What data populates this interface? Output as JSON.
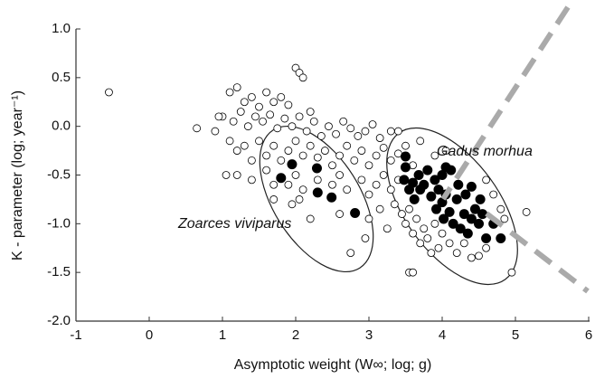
{
  "chart_data": {
    "type": "scatter",
    "x_label": "Asymptotic weight (W∞; log; g)",
    "y_label": "K - parameter (log; year⁻¹)",
    "annotations": [
      "Gadus morhua",
      "Zoarces viviparus"
    ],
    "xlim": [
      -1,
      6
    ],
    "xticks": [
      -1,
      0,
      1,
      2,
      3,
      4,
      5,
      6
    ],
    "ylim": [
      -2,
      1
    ],
    "yticks": [
      {
        "value": 1,
        "label": "1.0"
      },
      0.5,
      {
        "value": 0,
        "label": "0.0"
      },
      -0.5,
      {
        "value": -1,
        "label": "-1.0"
      },
      -1.5,
      {
        "value": -2,
        "label": "-2.0"
      }
    ],
    "series": [
      {
        "color": "#000000",
        "marker": "open",
        "x": [
          -0.55,
          0.65,
          2.0,
          2.05,
          2.1,
          5.15,
          2.75,
          3.55,
          3.6,
          4.95,
          4.5,
          1.1,
          1.2,
          1.3,
          1.4,
          1.5,
          1.6,
          1.7,
          1.8,
          1.9,
          2.2,
          1.0,
          1.15,
          1.25,
          1.35,
          1.45,
          1.55,
          1.65,
          1.75,
          1.85,
          1.95,
          2.05,
          2.15,
          2.25,
          2.35,
          2.45,
          2.55,
          2.65,
          2.75,
          2.85,
          2.95,
          3.05,
          3.15,
          3.3,
          0.9,
          1.1,
          1.2,
          1.3,
          1.4,
          1.5,
          1.6,
          1.7,
          1.8,
          1.9,
          2.0,
          2.1,
          2.2,
          2.3,
          2.4,
          2.5,
          2.6,
          2.7,
          2.8,
          2.9,
          3.0,
          3.1,
          3.2,
          3.3,
          3.4,
          3.5,
          1.2,
          1.4,
          1.6,
          1.7,
          1.9,
          2.0,
          2.1,
          2.3,
          2.5,
          2.6,
          2.7,
          2.9,
          3.0,
          3.1,
          3.2,
          3.3,
          3.35,
          3.4,
          3.45,
          3.5,
          3.55,
          3.6,
          3.65,
          3.7,
          3.75,
          3.8,
          3.85,
          3.9,
          3.95,
          4.0,
          4.1,
          4.2,
          4.3,
          4.4,
          4.6,
          4.7,
          4.8,
          4.85,
          4.6,
          3.9,
          4.05,
          1.95,
          2.05,
          1.7,
          2.2,
          2.6,
          3.0,
          3.15,
          3.25,
          2.95,
          1.05,
          0.95,
          3.4,
          3.6,
          3.7
        ],
        "values": [
          0.35,
          -0.02,
          0.6,
          0.55,
          0.5,
          -0.88,
          -1.3,
          -1.5,
          -1.5,
          -1.5,
          -1.33,
          0.35,
          0.4,
          0.25,
          0.3,
          0.2,
          0.35,
          0.25,
          0.3,
          0.22,
          0.15,
          0.1,
          0.05,
          0.15,
          0.0,
          0.1,
          0.05,
          0.12,
          -0.02,
          0.08,
          0.0,
          0.1,
          -0.05,
          0.05,
          -0.1,
          0.0,
          -0.08,
          0.05,
          -0.02,
          -0.1,
          -0.05,
          0.02,
          -0.12,
          -0.05,
          -0.05,
          -0.15,
          -0.25,
          -0.2,
          -0.35,
          -0.15,
          -0.3,
          -0.2,
          -0.35,
          -0.25,
          -0.15,
          -0.3,
          -0.2,
          -0.32,
          -0.25,
          -0.4,
          -0.3,
          -0.2,
          -0.35,
          -0.25,
          -0.4,
          -0.3,
          -0.22,
          -0.35,
          -0.28,
          -0.2,
          -0.5,
          -0.55,
          -0.45,
          -0.6,
          -0.6,
          -0.5,
          -0.65,
          -0.55,
          -0.6,
          -0.5,
          -0.65,
          -0.55,
          -0.7,
          -0.6,
          -0.5,
          -0.65,
          -0.8,
          -0.55,
          -0.9,
          -1.0,
          -0.85,
          -1.1,
          -0.95,
          -1.2,
          -1.05,
          -1.15,
          -1.3,
          -1.0,
          -1.25,
          -1.1,
          -1.2,
          -1.3,
          -1.2,
          -1.35,
          -1.25,
          -0.7,
          -0.85,
          -0.95,
          -0.55,
          -0.3,
          -0.25,
          -0.8,
          -0.75,
          -0.75,
          -0.95,
          -0.9,
          -0.95,
          -0.85,
          -1.05,
          -1.15,
          -0.5,
          0.1,
          -0.05,
          -0.4,
          -0.15
        ]
      },
      {
        "color": "#000000",
        "marker": "filled",
        "x": [
          1.8,
          1.95,
          2.29,
          2.3,
          2.49,
          2.81,
          3.5,
          3.5,
          3.48,
          3.55,
          3.6,
          3.62,
          3.68,
          3.7,
          3.75,
          3.8,
          3.85,
          3.9,
          3.92,
          3.95,
          4.0,
          4.0,
          4.02,
          4.05,
          4.1,
          4.12,
          4.15,
          4.2,
          4.22,
          4.25,
          4.3,
          4.32,
          4.35,
          4.4,
          4.4,
          4.45,
          4.5,
          4.52,
          4.55,
          4.6,
          4.7,
          4.8,
          4.05
        ],
        "values": [
          -0.53,
          -0.39,
          -0.43,
          -0.68,
          -0.73,
          -0.89,
          -0.31,
          -0.42,
          -0.55,
          -0.65,
          -0.58,
          -0.75,
          -0.5,
          -0.65,
          -0.6,
          -0.45,
          -0.72,
          -0.55,
          -0.85,
          -0.65,
          -0.5,
          -0.78,
          -0.95,
          -0.7,
          -0.88,
          -0.45,
          -1.0,
          -0.75,
          -0.6,
          -1.05,
          -0.9,
          -0.7,
          -1.1,
          -0.95,
          -0.62,
          -0.85,
          -1.0,
          -0.75,
          -0.9,
          -1.15,
          -1.0,
          -1.15,
          -0.42
        ]
      }
    ]
  }
}
